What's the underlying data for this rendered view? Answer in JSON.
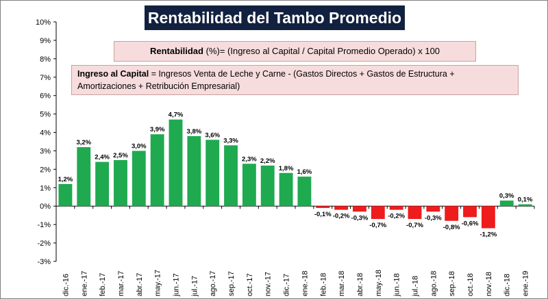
{
  "title": "Rentabilidad del Tambo Promedio",
  "formula": {
    "term": "Rentabilidad",
    "text": "(%)= (Ingreso al Capital / Capital Promedio Operado) x 100"
  },
  "definition": {
    "term": "Ingreso al Capital",
    "text": "= Ingresos Venta de Leche y Carne  -  (Gastos Directos  +  Gastos de Estructura  +  Amortizaciones  +  Retribución Empresarial)"
  },
  "colors": {
    "positive": "#1faa50",
    "negative": "#ee1c1c",
    "title_bg": "#12213f",
    "box_bg": "#f6dcdc"
  },
  "chart_data": {
    "type": "bar",
    "title": "Rentabilidad del Tambo Promedio",
    "xlabel": "",
    "ylabel": "",
    "ylim": [
      -3,
      10
    ],
    "yticks": [
      "10%",
      "9%",
      "8%",
      "7%",
      "6%",
      "5%",
      "4%",
      "3%",
      "2%",
      "1%",
      "0%",
      "-1%",
      "-2%",
      "-3%"
    ],
    "grid": false,
    "legend": "none",
    "categories": [
      "dic.-16",
      "ene.-17",
      "feb.-17",
      "mar.-17",
      "abr.-17",
      "may.-17",
      "jun.-17",
      "jul.-17",
      "ago.-17",
      "sep.-17",
      "oct.-17",
      "nov.-17",
      "dic.-17",
      "ene.-18",
      "feb.-18",
      "mar.-18",
      "abr.-18",
      "may.-18",
      "jun.-18",
      "jul.-18",
      "ago.-18",
      "sep.-18",
      "oct.-18",
      "nov.-18",
      "dic.-18",
      "ene.-19"
    ],
    "values": [
      1.2,
      3.2,
      2.4,
      2.5,
      3.0,
      3.9,
      4.7,
      3.8,
      3.6,
      3.3,
      2.3,
      2.2,
      1.8,
      1.6,
      -0.1,
      -0.2,
      -0.3,
      -0.7,
      -0.2,
      -0.7,
      -0.3,
      -0.8,
      -0.6,
      -1.2,
      0.3,
      0.1
    ],
    "data_labels": [
      "1,2%",
      "3,2%",
      "2,4%",
      "2,5%",
      "3,0%",
      "3,9%",
      "4,7%",
      "3,8%",
      "3,6%",
      "3,3%",
      "2,3%",
      "2,2%",
      "1,8%",
      "1,6%",
      "-0,1%",
      "-0,2%",
      "-0,3%",
      "-0,7%",
      "-0,2%",
      "-0,7%",
      "-0,3%",
      "-0,8%",
      "-0,6%",
      "-1,2%",
      "0,3%",
      "0,1%"
    ]
  }
}
